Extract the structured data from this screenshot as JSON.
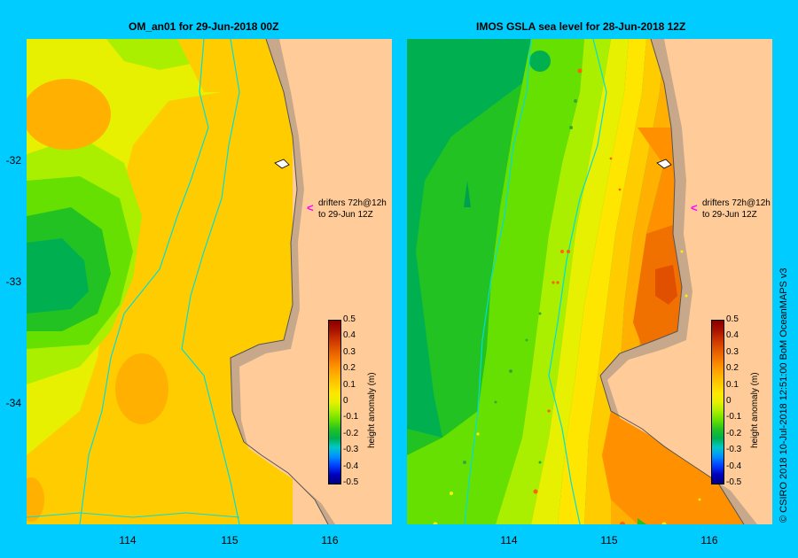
{
  "panels": [
    {
      "title": "OM_an01  for 29-Jun-2018 00Z"
    },
    {
      "title": "IMOS  GSLA sea level  for 28-Jun-2018 12Z"
    }
  ],
  "axes": {
    "lat_labels": [
      "-32",
      "-33",
      "-34"
    ],
    "lon_labels": [
      "114",
      "115",
      "116"
    ]
  },
  "annotation": {
    "line1": "drifters 72h@12h",
    "line2": "to 29-Jun 12Z",
    "arrow": "<"
  },
  "colorbar": {
    "title": "height anomaly (m)",
    "ticks": [
      "0.5",
      "0.4",
      "0.3",
      "0.2",
      "0.1",
      "0",
      "-0.1",
      "-0.2",
      "-0.3",
      "-0.4",
      "-0.5"
    ],
    "colors": [
      "#000080",
      "#0000c0",
      "#0040ff",
      "#0090ff",
      "#00c8c8",
      "#00b050",
      "#22c222",
      "#66e000",
      "#aaee00",
      "#e6f000",
      "#ffe600",
      "#ffcc00",
      "#ffb000",
      "#ff9000",
      "#f07000",
      "#e05000",
      "#c83000",
      "#a81000",
      "#880000"
    ]
  },
  "credit": "© CSIRO 2018   10-Jul-2018 12:51:00 BoM OceanMAPS v3",
  "colors": {
    "background": "#00ccff",
    "land": "#c8a88a",
    "ocean_out": "#ffcc99"
  }
}
